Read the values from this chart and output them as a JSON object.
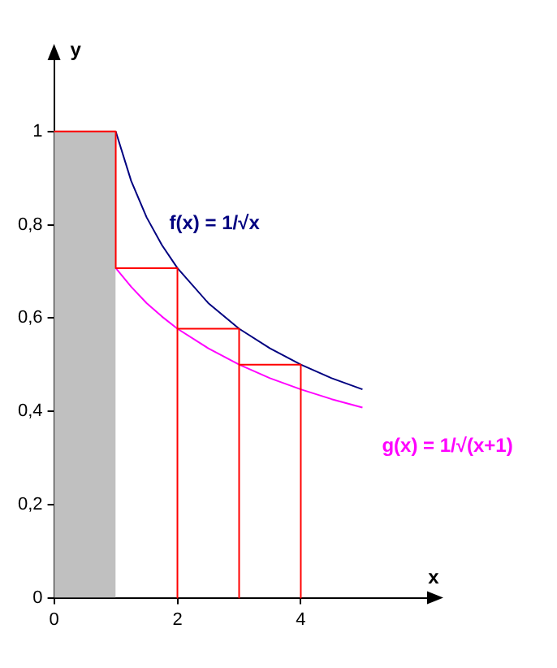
{
  "chart_data": {
    "type": "line",
    "xlabel": "x",
    "ylabel": "y",
    "xlim": [
      0,
      6.1
    ],
    "ylim": [
      0,
      1.16
    ],
    "xticks": [
      0,
      2,
      4
    ],
    "yticks": [
      0,
      {
        "value": 0.2,
        "label": "0,2"
      },
      {
        "value": 0.4,
        "label": "0,4"
      },
      {
        "value": 0.6,
        "label": "0,6"
      },
      {
        "value": 0.8,
        "label": "0,8"
      },
      1
    ],
    "grid": false,
    "legend": false,
    "marker": "none",
    "line_style": "solid",
    "series": [
      {
        "type": "area",
        "color": "#c0c0c0",
        "x": [
          0,
          1
        ],
        "values": [
          1,
          1
        ]
      },
      {
        "type": "line",
        "color": "#ff0000",
        "x": [
          0,
          1,
          1,
          2,
          2,
          2,
          3,
          3,
          3,
          4,
          4
        ],
        "values": [
          1,
          1,
          0.707,
          0.707,
          0,
          0.577,
          0.577,
          0,
          0.5,
          0.5,
          0
        ]
      },
      {
        "type": "line",
        "name": "f(x) = 1/√x",
        "color": "#000080",
        "x": [
          1,
          1.25,
          1.5,
          1.75,
          2,
          2.5,
          3,
          3.5,
          4,
          4.5,
          5
        ],
        "values": [
          1,
          0.894,
          0.816,
          0.756,
          0.707,
          0.632,
          0.577,
          0.535,
          0.5,
          0.471,
          0.447
        ]
      },
      {
        "type": "line",
        "name": "g(x) = 1/√(x+1)",
        "color": "#ff00ff",
        "x": [
          1,
          1.25,
          1.5,
          1.75,
          2,
          2.5,
          3,
          3.5,
          4,
          4.5,
          5
        ],
        "values": [
          0.707,
          0.667,
          0.632,
          0.603,
          0.577,
          0.535,
          0.5,
          0.471,
          0.447,
          0.426,
          0.408
        ]
      }
    ]
  }
}
